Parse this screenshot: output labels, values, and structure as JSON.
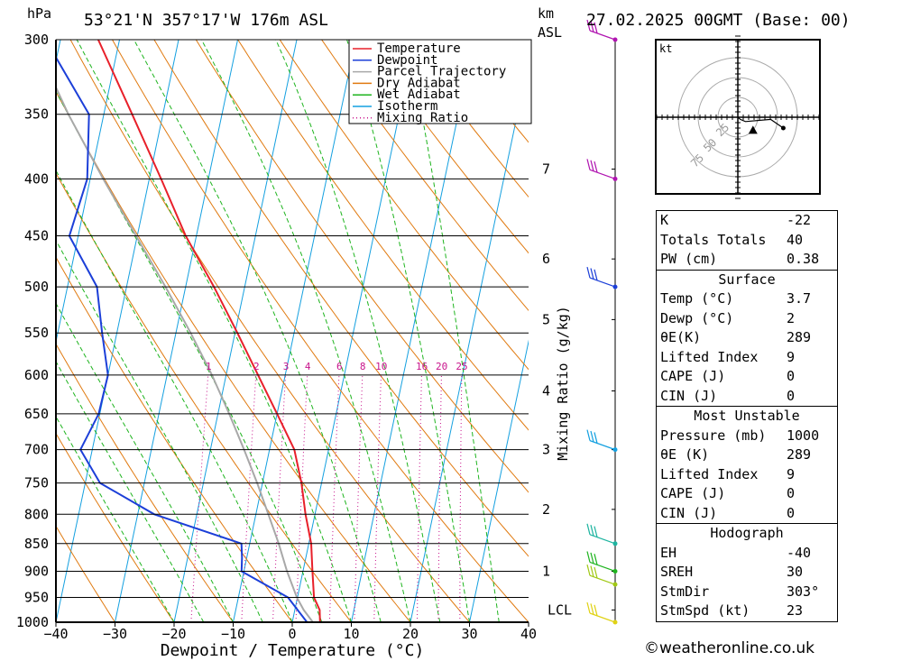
{
  "header": {
    "pressure_unit": "hPa",
    "location": "53°21'N 357°17'W 176m ASL",
    "km_label": "km",
    "asl_label": "ASL",
    "datetime": "27.02.2025 00GMT (Base: 00)"
  },
  "chart_data": {
    "type": "skew-t log-p",
    "xlabel": "Dewpoint / Temperature (°C)",
    "x_ticks": [
      -40,
      -30,
      -20,
      -10,
      0,
      10,
      20,
      30,
      40
    ],
    "xlim": [
      -40,
      40
    ],
    "pressure_ticks": [
      300,
      350,
      400,
      450,
      500,
      550,
      600,
      650,
      700,
      750,
      800,
      850,
      900,
      950,
      1000
    ],
    "ylim": [
      1000,
      300
    ],
    "y_scale": "log",
    "height_ticks_km": [
      {
        "p": 392,
        "label": "7"
      },
      {
        "p": 472,
        "label": "6"
      },
      {
        "p": 535,
        "label": "5"
      },
      {
        "p": 620,
        "label": "4"
      },
      {
        "p": 700,
        "label": "3"
      },
      {
        "p": 792,
        "label": "2"
      },
      {
        "p": 900,
        "label": "1"
      },
      {
        "p": 975,
        "label": "LCL"
      }
    ],
    "mixing_ratio_label": "Mixing Ratio (g/kg)",
    "mixing_ratios": [
      "1",
      "2",
      "3",
      "4",
      "6",
      "8",
      "10",
      "16",
      "20",
      "25"
    ],
    "mixing_ratio_label_pressure": 590,
    "legend": {
      "placement": "top-right",
      "entries": [
        {
          "name": "Temperature",
          "color": "#e8202a",
          "style": "solid"
        },
        {
          "name": "Dewpoint",
          "color": "#1c3fd8",
          "style": "solid"
        },
        {
          "name": "Parcel Trajectory",
          "color": "#a8a8a8",
          "style": "solid"
        },
        {
          "name": "Dry Adiabat",
          "color": "#e07a10",
          "style": "solid"
        },
        {
          "name": "Wet Adiabat",
          "color": "#1eb41e",
          "style": "solid"
        },
        {
          "name": "Isotherm",
          "color": "#14a0e0",
          "style": "solid"
        },
        {
          "name": "Mixing Ratio",
          "color": "#c8148c",
          "style": "dotted"
        }
      ]
    },
    "temperature": [
      {
        "p": 1000,
        "t": 4.7
      },
      {
        "p": 975,
        "t": 4.2
      },
      {
        "p": 950,
        "t": 2.8
      },
      {
        "p": 900,
        "t": 1.6
      },
      {
        "p": 850,
        "t": 0.4
      },
      {
        "p": 800,
        "t": -1.6
      },
      {
        "p": 750,
        "t": -3.4
      },
      {
        "p": 700,
        "t": -5.8
      },
      {
        "p": 650,
        "t": -10.0
      },
      {
        "p": 600,
        "t": -14.6
      },
      {
        "p": 550,
        "t": -19.6
      },
      {
        "p": 500,
        "t": -25.2
      },
      {
        "p": 450,
        "t": -31.8
      },
      {
        "p": 400,
        "t": -38.0
      },
      {
        "p": 350,
        "t": -45.2
      },
      {
        "p": 300,
        "t": -53.6
      }
    ],
    "dewpoint": [
      {
        "p": 1000,
        "t": 2.5
      },
      {
        "p": 950,
        "t": -1.6
      },
      {
        "p": 900,
        "t": -10.4
      },
      {
        "p": 875,
        "t": -10.8
      },
      {
        "p": 850,
        "t": -11.4
      },
      {
        "p": 800,
        "t": -27.2
      },
      {
        "p": 750,
        "t": -37.5
      },
      {
        "p": 700,
        "t": -42.0
      },
      {
        "p": 650,
        "t": -40.2
      },
      {
        "p": 600,
        "t": -40.0
      },
      {
        "p": 550,
        "t": -42.5
      },
      {
        "p": 500,
        "t": -45.0
      },
      {
        "p": 450,
        "t": -51.5
      },
      {
        "p": 400,
        "t": -50.5
      },
      {
        "p": 350,
        "t": -52.5
      },
      {
        "p": 300,
        "t": -62.5
      }
    ],
    "parcel": [
      {
        "p": 1000,
        "t": 3.5
      },
      {
        "p": 975,
        "t": 1.5
      },
      {
        "p": 950,
        "t": -0.1
      },
      {
        "p": 900,
        "t": -2.7
      },
      {
        "p": 850,
        "t": -5.1
      },
      {
        "p": 800,
        "t": -7.9
      },
      {
        "p": 750,
        "t": -10.9
      },
      {
        "p": 700,
        "t": -14.3
      },
      {
        "p": 650,
        "t": -18.1
      },
      {
        "p": 600,
        "t": -22.4
      },
      {
        "p": 550,
        "t": -27.5
      },
      {
        "p": 500,
        "t": -33.4
      },
      {
        "p": 450,
        "t": -40.2
      },
      {
        "p": 400,
        "t": -47.8
      },
      {
        "p": 350,
        "t": -56.0
      },
      {
        "p": 300,
        "t": -64.5
      }
    ],
    "wind_barbs": [
      {
        "p": 300,
        "color": "#b014b0"
      },
      {
        "p": 400,
        "color": "#b014b0"
      },
      {
        "p": 500,
        "color": "#1c3fd8"
      },
      {
        "p": 700,
        "color": "#14a0e0"
      },
      {
        "p": 850,
        "color": "#1eb4a0"
      },
      {
        "p": 900,
        "color": "#1eb41e"
      },
      {
        "p": 925,
        "color": "#a0c814"
      },
      {
        "p": 1000,
        "color": "#e0d214"
      }
    ],
    "hodograph": {
      "unit": "kt",
      "ring_labels": [
        "25",
        "50",
        "75"
      ],
      "points": [
        [
          0,
          0
        ],
        [
          1,
          -1
        ],
        [
          3,
          -2
        ],
        [
          13,
          -1
        ],
        [
          18,
          -5
        ]
      ],
      "storm_motion": [
        6,
        -6
      ]
    }
  },
  "indices": {
    "basic": [
      {
        "key": "K",
        "value": "-22"
      },
      {
        "key": "Totals Totals",
        "value": "40"
      },
      {
        "key": "PW (cm)",
        "value": "0.38"
      }
    ],
    "surface": {
      "title": "Surface",
      "rows": [
        {
          "key": "Temp (°C)",
          "value": "3.7"
        },
        {
          "key": "Dewp (°C)",
          "value": "2"
        },
        {
          "key": "θE(K)",
          "value": "289"
        },
        {
          "key": "Lifted Index",
          "value": "9"
        },
        {
          "key": "CAPE (J)",
          "value": "0"
        },
        {
          "key": "CIN (J)",
          "value": "0"
        }
      ]
    },
    "most_unstable": {
      "title": "Most Unstable",
      "rows": [
        {
          "key": "Pressure (mb)",
          "value": "1000"
        },
        {
          "key": "θE (K)",
          "value": "289"
        },
        {
          "key": "Lifted Index",
          "value": "9"
        },
        {
          "key": "CAPE (J)",
          "value": "0"
        },
        {
          "key": "CIN (J)",
          "value": "0"
        }
      ]
    },
    "hodograph": {
      "title": "Hodograph",
      "rows": [
        {
          "key": "EH",
          "value": "-40"
        },
        {
          "key": "SREH",
          "value": "30"
        },
        {
          "key": "StmDir",
          "value": "303°"
        },
        {
          "key": "StmSpd (kt)",
          "value": "23"
        }
      ]
    }
  },
  "footer": {
    "credit": "©weatheronline.co.uk"
  },
  "colors": {
    "grid": "#000000",
    "isotherm": "#14a0e0",
    "dry_adiabat": "#e07a10",
    "wet_adiabat": "#1eb41e",
    "mixing_ratio": "#c8148c",
    "temperature": "#e8202a",
    "dewpoint": "#1c3fd8",
    "parcel": "#a8a8a8"
  }
}
